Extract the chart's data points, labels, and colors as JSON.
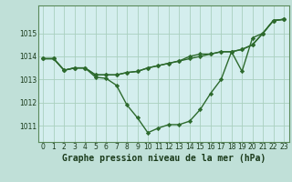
{
  "title": "",
  "xlabel": "Graphe pression niveau de la mer (hPa)",
  "x": [
    0,
    1,
    2,
    3,
    4,
    5,
    6,
    7,
    8,
    9,
    10,
    11,
    12,
    13,
    14,
    15,
    16,
    17,
    18,
    19,
    20,
    21,
    22,
    23
  ],
  "line1": [
    1013.9,
    1013.9,
    1013.4,
    1013.5,
    1013.5,
    1013.1,
    1013.05,
    1012.75,
    1011.9,
    1011.35,
    1010.7,
    1010.9,
    1011.05,
    1011.05,
    1011.2,
    1011.7,
    1012.4,
    1013.0,
    1014.2,
    1013.35,
    1014.8,
    1015.0,
    1015.55,
    1015.6
  ],
  "line2": [
    1013.9,
    1013.9,
    1013.4,
    1013.5,
    1013.5,
    1013.2,
    1013.2,
    1013.2,
    1013.3,
    1013.35,
    1013.5,
    1013.6,
    1013.7,
    1013.8,
    1013.9,
    1014.0,
    1014.1,
    1014.2,
    1014.2,
    1014.3,
    1014.5,
    1015.0,
    1015.55,
    1015.6
  ],
  "line3": [
    1013.9,
    1013.9,
    1013.4,
    1013.5,
    1013.5,
    1013.2,
    1013.2,
    1013.2,
    1013.3,
    1013.35,
    1013.5,
    1013.6,
    1013.7,
    1013.8,
    1014.0,
    1014.1,
    1014.1,
    1014.2,
    1014.2,
    1014.3,
    1014.5,
    1015.0,
    1015.55,
    1015.6
  ],
  "ylim": [
    1010.3,
    1016.2
  ],
  "yticks": [
    1011,
    1012,
    1013,
    1014,
    1015
  ],
  "xticks": [
    0,
    1,
    2,
    3,
    4,
    5,
    6,
    7,
    8,
    9,
    10,
    11,
    12,
    13,
    14,
    15,
    16,
    17,
    18,
    19,
    20,
    21,
    22,
    23
  ],
  "line_color": "#2d6a2d",
  "bg_color": "#d4eeee",
  "grid_color": "#aacfbf",
  "marker": "D",
  "marker_size": 2.2,
  "line_width": 1.0,
  "xlabel_fontsize": 7,
  "tick_fontsize": 5.5,
  "fig_bg": "#c0e0d8"
}
